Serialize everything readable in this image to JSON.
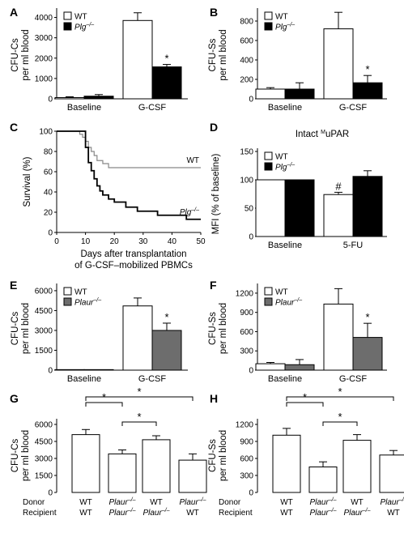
{
  "chart_data": [
    {
      "panel": "A",
      "type": "bar",
      "ylabel": [
        "CFU-Cs",
        "per ml blood"
      ],
      "yticks": [
        0,
        1000,
        2000,
        3000,
        4000
      ],
      "ylim": [
        0,
        4300
      ],
      "categories": [
        "Baseline",
        "G-CSF"
      ],
      "series": [
        {
          "name": "WT",
          "color": "#ffffff",
          "values": [
            60,
            3850
          ],
          "errors": [
            40,
            380
          ]
        },
        {
          "name": "Plg",
          "sup": "–/–",
          "color": "#000000",
          "values": [
            130,
            1570
          ],
          "errors": [
            80,
            120
          ]
        }
      ],
      "annotations": [
        {
          "text": "*",
          "category": 1,
          "series": 1
        }
      ]
    },
    {
      "panel": "B",
      "type": "bar",
      "ylabel": [
        "CFU-Ss",
        "per ml blood"
      ],
      "yticks": [
        0,
        200,
        400,
        600,
        800
      ],
      "ylim": [
        0,
        900
      ],
      "categories": [
        "Baseline",
        "G-CSF"
      ],
      "series": [
        {
          "name": "WT",
          "color": "#ffffff",
          "values": [
            100,
            720
          ],
          "errors": [
            15,
            170
          ]
        },
        {
          "name": "Plg",
          "sup": "–/–",
          "color": "#000000",
          "values": [
            100,
            165
          ],
          "errors": [
            65,
            75
          ]
        }
      ],
      "annotations": [
        {
          "text": "*",
          "category": 1,
          "series": 1
        }
      ]
    },
    {
      "panel": "C",
      "type": "line",
      "xlabel": [
        "Days after transplantation",
        "of G-CSF–mobilized PBMCs"
      ],
      "ylabel": "Survival (%)",
      "xticks": [
        0,
        10,
        20,
        30,
        40,
        50
      ],
      "yticks": [
        0,
        20,
        40,
        60,
        80,
        100
      ],
      "xlim": [
        0,
        50
      ],
      "ylim": [
        0,
        100
      ],
      "series": [
        {
          "name": "WT",
          "color": "#888888",
          "x": [
            0,
            7,
            8,
            9,
            10,
            11,
            12,
            13,
            14,
            16,
            17,
            18,
            50
          ],
          "y": [
            100,
            100,
            97,
            94,
            90,
            84,
            80,
            76,
            71,
            68,
            68,
            64,
            64
          ]
        },
        {
          "name": "Plg",
          "sup": "–/–",
          "color": "#000000",
          "x": [
            0,
            9,
            10,
            11,
            12,
            13,
            14,
            15,
            16,
            18,
            20,
            24,
            28,
            35,
            45,
            50
          ],
          "y": [
            100,
            100,
            84,
            69,
            61,
            53,
            46,
            41,
            37,
            33,
            30,
            25,
            21,
            17,
            13,
            13
          ]
        }
      ]
    },
    {
      "panel": "D",
      "type": "bar",
      "title": "Intact",
      "title_sup": "M",
      "title_end": "uPAR",
      "ylabel": "MFI (% of baseline)",
      "yticks": [
        0,
        50,
        100,
        150
      ],
      "ylim": [
        0,
        150
      ],
      "categories": [
        "Baseline",
        "5-FU"
      ],
      "series": [
        {
          "name": "WT",
          "color": "#ffffff",
          "values": [
            100,
            74
          ],
          "errors": [
            0,
            4
          ]
        },
        {
          "name": "Plg",
          "sup": "–/–",
          "color": "#000000",
          "values": [
            100,
            106
          ],
          "errors": [
            0,
            10
          ]
        }
      ],
      "annotations": [
        {
          "text": "#",
          "category": 1,
          "series": 0
        }
      ]
    },
    {
      "panel": "E",
      "type": "bar",
      "ylabel": [
        "CFU-Cs",
        "per ml blood"
      ],
      "yticks": [
        0,
        1500,
        3000,
        4500,
        6000
      ],
      "ylim": [
        0,
        6300
      ],
      "categories": [
        "Baseline",
        "G-CSF"
      ],
      "series": [
        {
          "name": "WT",
          "color": "#ffffff",
          "values": [
            40,
            4850
          ],
          "errors": [
            0,
            600
          ]
        },
        {
          "name": "Plaur",
          "sup": "–/–",
          "color": "#6d6d6d",
          "values": [
            40,
            3000
          ],
          "errors": [
            0,
            550
          ]
        }
      ],
      "annotations": [
        {
          "text": "*",
          "category": 1,
          "series": 1
        }
      ]
    },
    {
      "panel": "F",
      "type": "bar",
      "ylabel": [
        "CFU-Ss",
        "per ml blood"
      ],
      "yticks": [
        0,
        300,
        600,
        900,
        1200
      ],
      "ylim": [
        0,
        1300
      ],
      "categories": [
        "Baseline",
        "G-CSF"
      ],
      "series": [
        {
          "name": "WT",
          "color": "#ffffff",
          "values": [
            100,
            1030
          ],
          "errors": [
            20,
            240
          ]
        },
        {
          "name": "Plaur",
          "sup": "–/–",
          "color": "#6d6d6d",
          "values": [
            85,
            510
          ],
          "errors": [
            80,
            220
          ]
        }
      ],
      "annotations": [
        {
          "text": "*",
          "category": 1,
          "series": 1
        }
      ]
    },
    {
      "panel": "G",
      "type": "bar",
      "ylabel": [
        "CFU-Cs",
        "per ml blood"
      ],
      "yticks": [
        0,
        1500,
        3000,
        4500,
        6000
      ],
      "ylim": [
        0,
        6500
      ],
      "categories": [
        "1",
        "2",
        "3",
        "4"
      ],
      "values": [
        5100,
        3400,
        4650,
        2850
      ],
      "errors": [
        450,
        350,
        350,
        550
      ],
      "brackets": [
        [
          0,
          1
        ],
        [
          1,
          2
        ],
        [
          0,
          3
        ]
      ],
      "bracket_label": "*"
    },
    {
      "panel": "H",
      "type": "bar",
      "ylabel": [
        "CFU-Ss",
        "per ml blood"
      ],
      "yticks": [
        0,
        300,
        600,
        900,
        1200
      ],
      "ylim": [
        0,
        1300
      ],
      "categories": [
        "1",
        "2",
        "3",
        "4"
      ],
      "values": [
        1010,
        450,
        920,
        660
      ],
      "errors": [
        120,
        90,
        100,
        80
      ],
      "brackets": [
        [
          0,
          1
        ],
        [
          1,
          2
        ],
        [
          0,
          3
        ]
      ],
      "bracket_label": "*"
    }
  ],
  "transplant_table": {
    "row_labels": [
      "Donor",
      "Recipient"
    ],
    "columns": [
      {
        "donor": "WT",
        "donor_sup": "",
        "recipient": "WT",
        "recipient_sup": ""
      },
      {
        "donor": "Plaur",
        "donor_sup": "–/–",
        "recipient": "Plaur",
        "recipient_sup": "–/–"
      },
      {
        "donor": "WT",
        "donor_sup": "",
        "recipient": "Plaur",
        "recipient_sup": "–/–"
      },
      {
        "donor": "Plaur",
        "donor_sup": "–/–",
        "recipient": "WT",
        "recipient_sup": ""
      }
    ]
  }
}
